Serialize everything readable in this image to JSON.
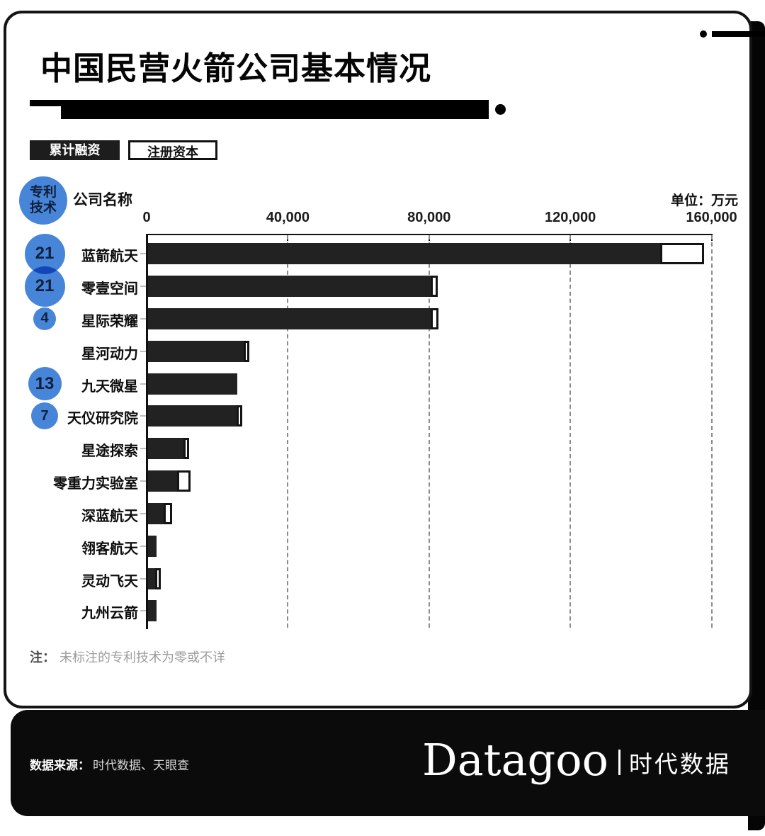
{
  "title": "中国民营火箭公司基本情况",
  "legend": [
    {
      "label": "累计融资",
      "style": "filled-black"
    },
    {
      "label": "注册资本",
      "style": "white-outlined"
    }
  ],
  "patent_badge": {
    "line1": "专利",
    "line2": "技术"
  },
  "columns": {
    "company": "公司名称",
    "unit": "单位：万元"
  },
  "chart_data": {
    "type": "bar",
    "orientation": "horizontal",
    "unit": "万元",
    "xlim": [
      0,
      160000
    ],
    "x_ticks": [
      0,
      40000,
      80000,
      120000,
      160000
    ],
    "x_tick_labels": [
      "0",
      "40,000",
      "80,000",
      "120,000",
      "160,000"
    ],
    "grid": "dashed-vertical",
    "series_names": [
      "累计融资",
      "注册资本"
    ],
    "bubble_series_name": "专利技术",
    "companies": [
      {
        "name": "蓝箭航天",
        "patents": 21,
        "funding": 145000,
        "registered": 12500
      },
      {
        "name": "零壹空间",
        "patents": 21,
        "funding": 80000,
        "registered": 2000
      },
      {
        "name": "星际荣耀",
        "patents": 4,
        "funding": 80000,
        "registered": 2300
      },
      {
        "name": "星河动力",
        "patents": null,
        "funding": 27000,
        "registered": 1700
      },
      {
        "name": "九天微星",
        "patents": 13,
        "funding": 25300,
        "registered": 0
      },
      {
        "name": "天仪研究院",
        "patents": 7,
        "funding": 25000,
        "registered": 1500
      },
      {
        "name": "星途探索",
        "patents": null,
        "funding": 10000,
        "registered": 1500
      },
      {
        "name": "零重力实验室",
        "patents": null,
        "funding": 8200,
        "registered": 3800
      },
      {
        "name": "深蓝航天",
        "patents": null,
        "funding": 4500,
        "registered": 2300
      },
      {
        "name": "翎客航天",
        "patents": null,
        "funding": 2400,
        "registered": 0
      },
      {
        "name": "灵动飞天",
        "patents": null,
        "funding": 2000,
        "registered": 1500
      },
      {
        "name": "九州云箭",
        "patents": null,
        "funding": 2400,
        "registered": 0
      }
    ]
  },
  "note": {
    "prefix": "注：",
    "text": "未标注的专利技术为零或不详"
  },
  "footer": {
    "source_label": "数据来源：",
    "source_text": "时代数据、天眼查",
    "brand": "Datagoo",
    "brand_cn": "时代数据"
  },
  "colors": {
    "bar_black": "#222222",
    "circle_blue": "#4785d9",
    "footer_bg": "#0b0b0b",
    "grid_gray": "#8c8c8c"
  }
}
